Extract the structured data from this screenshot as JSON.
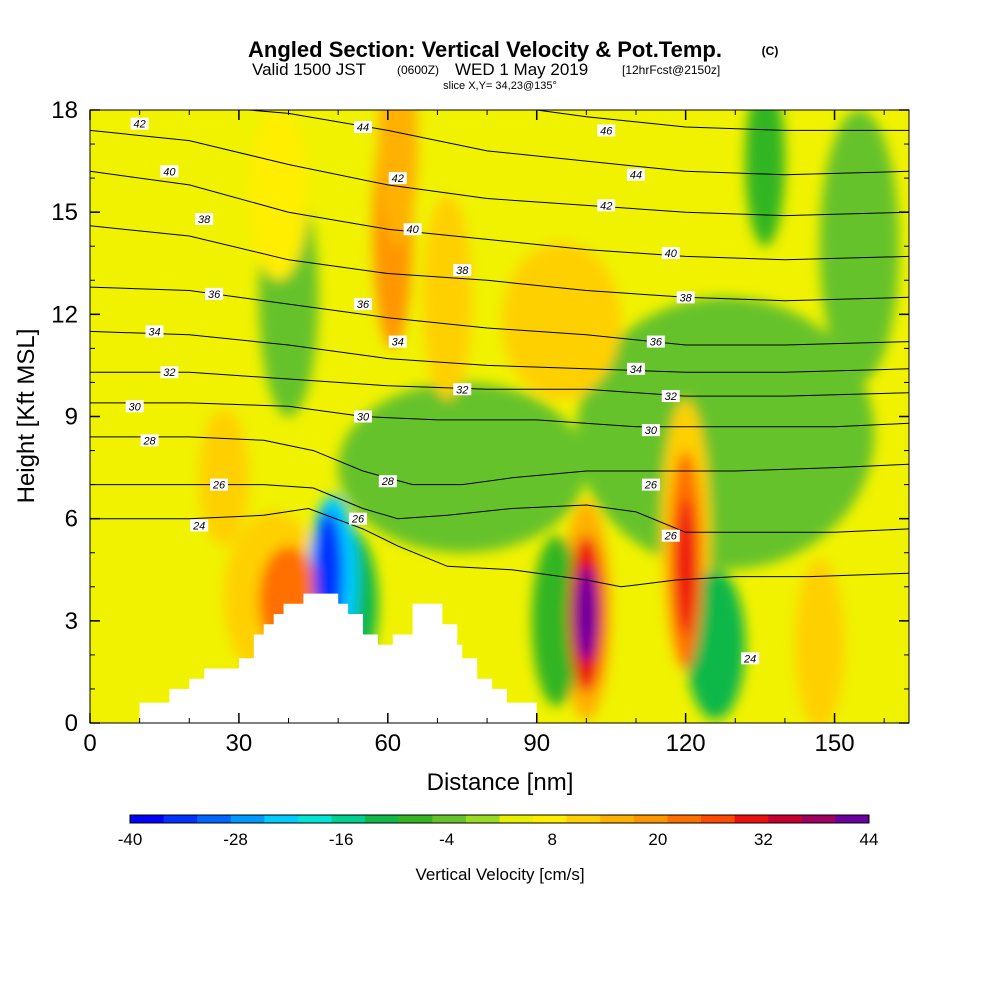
{
  "header": {
    "title_main": "Angled Section: Vertical Velocity & Pot.Temp.",
    "title_unit": "(C)",
    "valid_prefix": "Valid 1500 JST",
    "valid_z": "(0600Z)",
    "valid_date": "WED 1 May 2019",
    "valid_fcst": "[12hrFcst@2150z]",
    "slice": "slice X,Y= 34,23@135°"
  },
  "chart_data": {
    "type": "heatmap",
    "xlabel": "Distance [nm]",
    "ylabel": "Height [Kft MSL]",
    "xlim": [
      0,
      165
    ],
    "ylim": [
      0,
      18
    ],
    "x_ticks": [
      "0",
      "30",
      "60",
      "90",
      "120",
      "150"
    ],
    "y_ticks": [
      "0",
      "3",
      "6",
      "9",
      "12",
      "15",
      "18"
    ],
    "colorbar": {
      "label": "Vertical Velocity [cm/s]",
      "tick_labels": [
        "-40",
        "-28",
        "-16",
        "-4",
        "8",
        "20",
        "32",
        "44"
      ],
      "levels": [
        -40,
        -36,
        -32,
        -28,
        -24,
        -20,
        -16,
        -12,
        -8,
        -4,
        0,
        4,
        8,
        12,
        16,
        20,
        24,
        28,
        32,
        36,
        40,
        44
      ],
      "colors": [
        "#0000ff",
        "#0033ff",
        "#0066ff",
        "#0099ff",
        "#00ccff",
        "#00e5d5",
        "#00d090",
        "#10b848",
        "#33b520",
        "#66c22a",
        "#99dd22",
        "#e8f000",
        "#ffee00",
        "#ffd000",
        "#ffb000",
        "#ff9600",
        "#ff7000",
        "#ff4a00",
        "#ee1010",
        "#c80030",
        "#a00060",
        "#6a00a0"
      ]
    },
    "terrain_nm_kft": [
      [
        0,
        0
      ],
      [
        10,
        0
      ],
      [
        10,
        0.6
      ],
      [
        16,
        0.6
      ],
      [
        16,
        1.0
      ],
      [
        20,
        1.0
      ],
      [
        20,
        1.3
      ],
      [
        23,
        1.3
      ],
      [
        23,
        1.6
      ],
      [
        30,
        1.6
      ],
      [
        30,
        1.9
      ],
      [
        33,
        1.9
      ],
      [
        33,
        2.6
      ],
      [
        35,
        2.6
      ],
      [
        35,
        2.9
      ],
      [
        37,
        2.9
      ],
      [
        37,
        3.2
      ],
      [
        39,
        3.2
      ],
      [
        39,
        3.5
      ],
      [
        43,
        3.5
      ],
      [
        43,
        3.8
      ],
      [
        50,
        3.8
      ],
      [
        50,
        3.5
      ],
      [
        52,
        3.5
      ],
      [
        52,
        3.2
      ],
      [
        55,
        3.2
      ],
      [
        55,
        2.6
      ],
      [
        58,
        2.6
      ],
      [
        58,
        2.3
      ],
      [
        61,
        2.3
      ],
      [
        61,
        2.6
      ],
      [
        65,
        2.6
      ],
      [
        65,
        3.5
      ],
      [
        71,
        3.5
      ],
      [
        71,
        2.9
      ],
      [
        74,
        2.9
      ],
      [
        74,
        2.3
      ],
      [
        75,
        2.3
      ],
      [
        75,
        1.9
      ],
      [
        78,
        1.9
      ],
      [
        78,
        1.3
      ],
      [
        81,
        1.3
      ],
      [
        81,
        1.0
      ],
      [
        84,
        1.0
      ],
      [
        84,
        0.6
      ],
      [
        90,
        0.6
      ],
      [
        90,
        0
      ],
      [
        0,
        0
      ]
    ],
    "velocity_cells": [
      {
        "x": 100,
        "y": 3.2,
        "rx": 2.2,
        "ry": 1.4,
        "value": 44
      },
      {
        "x": 100,
        "y": 3.2,
        "rx": 3.5,
        "ry": 2.3,
        "value": 32
      },
      {
        "x": 100,
        "y": 3.3,
        "rx": 5.0,
        "ry": 3.2,
        "value": 16
      },
      {
        "x": 120,
        "y": 4.6,
        "rx": 2.0,
        "ry": 2.0,
        "value": 32
      },
      {
        "x": 120,
        "y": 4.8,
        "rx": 3.4,
        "ry": 3.2,
        "value": 24
      },
      {
        "x": 120,
        "y": 5.5,
        "rx": 5.0,
        "ry": 4.0,
        "value": 12
      },
      {
        "x": 48,
        "y": 4.4,
        "rx": 3.0,
        "ry": 1.8,
        "value": -36
      },
      {
        "x": 49,
        "y": 4.2,
        "rx": 5.0,
        "ry": 2.5,
        "value": -24
      },
      {
        "x": 52,
        "y": 3.5,
        "rx": 6.0,
        "ry": 2.2,
        "value": -12
      },
      {
        "x": 40,
        "y": 3.6,
        "rx": 6.0,
        "ry": 1.6,
        "value": 24
      },
      {
        "x": 37,
        "y": 3.7,
        "rx": 10,
        "ry": 2.5,
        "value": 12
      },
      {
        "x": 94,
        "y": 3.0,
        "rx": 5.0,
        "ry": 2.5,
        "value": -8
      },
      {
        "x": 126,
        "y": 2.3,
        "rx": 6.0,
        "ry": 2.2,
        "value": -12
      },
      {
        "x": 147,
        "y": 2.3,
        "rx": 5.0,
        "ry": 2.5,
        "value": 12
      },
      {
        "x": 62,
        "y": 17.0,
        "rx": 4.0,
        "ry": 3.0,
        "value": 16
      },
      {
        "x": 61,
        "y": 14.5,
        "rx": 4.0,
        "ry": 3.5,
        "value": 20
      },
      {
        "x": 72,
        "y": 12.5,
        "rx": 5.0,
        "ry": 3.0,
        "value": 12
      },
      {
        "x": 95,
        "y": 11.8,
        "rx": 12,
        "ry": 2.3,
        "value": 12
      },
      {
        "x": 27,
        "y": 7.2,
        "rx": 5.0,
        "ry": 2.0,
        "value": 12
      },
      {
        "x": 38,
        "y": 15.5,
        "rx": 6.0,
        "ry": 2.5,
        "value": 8
      },
      {
        "x": 136,
        "y": 16.5,
        "rx": 4.0,
        "ry": 2.5,
        "value": -8
      },
      {
        "x": 155,
        "y": 14.0,
        "rx": 8.0,
        "ry": 4.0,
        "value": -4
      },
      {
        "x": 128,
        "y": 8.5,
        "rx": 30,
        "ry": 4.0,
        "value": -4
      },
      {
        "x": 75,
        "y": 7.5,
        "rx": 25,
        "ry": 2.5,
        "value": -4
      },
      {
        "x": 40,
        "y": 12.5,
        "rx": 6.0,
        "ry": 3.5,
        "value": -4
      }
    ],
    "isentropes": [
      {
        "label": "24",
        "x": [
          0,
          20,
          35,
          44,
          55,
          62,
          72,
          85,
          100,
          107,
          118,
          130,
          145,
          165
        ],
        "y": [
          6.0,
          6.0,
          6.1,
          6.3,
          5.7,
          5.2,
          4.6,
          4.5,
          4.2,
          4.0,
          4.2,
          4.3,
          4.3,
          4.4
        ],
        "label_pos": [
          [
            22,
            5.8
          ],
          [
            133,
            1.9
          ]
        ]
      },
      {
        "label": "26",
        "x": [
          0,
          20,
          35,
          45,
          55,
          62,
          72,
          85,
          100,
          110,
          120,
          135,
          150,
          165
        ],
        "y": [
          7.0,
          7.0,
          7.0,
          6.9,
          6.3,
          6.0,
          6.1,
          6.3,
          6.4,
          6.2,
          5.6,
          5.6,
          5.6,
          5.7
        ],
        "label_pos": [
          [
            26,
            7.0
          ],
          [
            54,
            6.0
          ],
          [
            113,
            7.0
          ],
          [
            117,
            5.5
          ]
        ]
      },
      {
        "label": "28",
        "x": [
          0,
          20,
          35,
          45,
          55,
          65,
          75,
          85,
          100,
          115,
          130,
          150,
          165
        ],
        "y": [
          8.4,
          8.4,
          8.3,
          8.0,
          7.4,
          7.0,
          7.0,
          7.2,
          7.4,
          7.4,
          7.4,
          7.5,
          7.6
        ],
        "label_pos": [
          [
            12,
            8.3
          ],
          [
            60,
            7.1
          ]
        ]
      },
      {
        "label": "30",
        "x": [
          0,
          20,
          40,
          55,
          70,
          90,
          110,
          130,
          150,
          165
        ],
        "y": [
          9.4,
          9.4,
          9.3,
          9.0,
          8.9,
          8.9,
          8.7,
          8.7,
          8.7,
          8.8
        ],
        "label_pos": [
          [
            9,
            9.3
          ],
          [
            55,
            9.0
          ],
          [
            113,
            8.6
          ]
        ]
      },
      {
        "label": "32",
        "x": [
          0,
          20,
          40,
          60,
          80,
          100,
          120,
          140,
          165
        ],
        "y": [
          10.3,
          10.3,
          10.1,
          9.9,
          9.8,
          9.8,
          9.6,
          9.6,
          9.7
        ],
        "label_pos": [
          [
            16,
            10.3
          ],
          [
            75,
            9.8
          ],
          [
            117,
            9.6
          ]
        ]
      },
      {
        "label": "34",
        "x": [
          0,
          20,
          40,
          60,
          80,
          100,
          120,
          140,
          165
        ],
        "y": [
          11.5,
          11.4,
          11.1,
          10.7,
          10.5,
          10.4,
          10.3,
          10.3,
          10.4
        ],
        "label_pos": [
          [
            13,
            11.5
          ],
          [
            62,
            11.2
          ],
          [
            110,
            10.4
          ]
        ]
      },
      {
        "label": "36",
        "x": [
          0,
          20,
          40,
          60,
          80,
          100,
          120,
          140,
          165
        ],
        "y": [
          12.8,
          12.7,
          12.3,
          11.9,
          11.6,
          11.4,
          11.1,
          11.1,
          11.2
        ],
        "label_pos": [
          [
            25,
            12.6
          ],
          [
            55,
            12.3
          ],
          [
            114,
            11.2
          ]
        ]
      },
      {
        "label": "38",
        "x": [
          0,
          20,
          40,
          60,
          80,
          100,
          120,
          140,
          165
        ],
        "y": [
          14.6,
          14.3,
          13.6,
          13.2,
          13.0,
          12.7,
          12.5,
          12.4,
          12.5
        ],
        "label_pos": [
          [
            23,
            14.8
          ],
          [
            75,
            13.3
          ],
          [
            120,
            12.5
          ]
        ]
      },
      {
        "label": "40",
        "x": [
          0,
          20,
          40,
          60,
          80,
          100,
          120,
          140,
          165
        ],
        "y": [
          16.2,
          15.8,
          15.0,
          14.5,
          14.2,
          13.9,
          13.7,
          13.6,
          13.7
        ],
        "label_pos": [
          [
            16,
            16.2
          ],
          [
            65,
            14.5
          ],
          [
            117,
            13.8
          ]
        ]
      },
      {
        "label": "42",
        "x": [
          0,
          20,
          40,
          60,
          80,
          100,
          120,
          140,
          165
        ],
        "y": [
          17.4,
          17.1,
          16.4,
          15.8,
          15.4,
          15.2,
          15.0,
          14.9,
          15.0
        ],
        "label_pos": [
          [
            10,
            17.6
          ],
          [
            62,
            16.0
          ],
          [
            104,
            15.2
          ]
        ]
      },
      {
        "label": "44",
        "x": [
          0,
          40,
          60,
          80,
          100,
          120,
          140,
          165
        ],
        "y": [
          18.4,
          17.9,
          17.4,
          16.8,
          16.5,
          16.2,
          16.1,
          16.2
        ],
        "label_pos": [
          [
            55,
            17.5
          ],
          [
            110,
            16.1
          ]
        ]
      },
      {
        "label": "46",
        "x": [
          0,
          60,
          80,
          100,
          120,
          140,
          165
        ],
        "y": [
          19.5,
          18.8,
          18.2,
          17.8,
          17.5,
          17.4,
          17.4
        ],
        "label_pos": [
          [
            104,
            17.4
          ]
        ]
      }
    ]
  }
}
